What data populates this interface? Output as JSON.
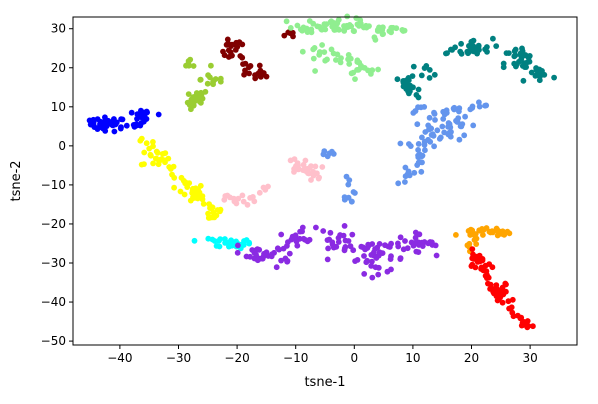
{
  "chart_data": {
    "type": "scatter",
    "xlabel": "tsne-1",
    "ylabel": "tsne-2",
    "xlim": [
      -48,
      38
    ],
    "ylim": [
      -51,
      33
    ],
    "xticks": [
      -40,
      -30,
      -20,
      -10,
      0,
      10,
      20,
      30
    ],
    "yticks": [
      -50,
      -40,
      -30,
      -20,
      -10,
      0,
      10,
      20,
      30
    ],
    "grid": false,
    "clusters": [
      {
        "color": "#0000ff",
        "segments": [
          [
            -45,
            6,
            -38,
            5
          ],
          [
            -38,
            5,
            -36,
            8
          ],
          [
            -36,
            8,
            -34,
            9
          ]
        ],
        "blobs": [
          [
            -42,
            5.5,
            2.5,
            1.5,
            30
          ],
          [
            -36.5,
            7,
            1.2,
            2,
            15
          ]
        ]
      },
      {
        "color": "#ffff00",
        "segments": [
          [
            -36,
            2,
            -32,
            -5
          ],
          [
            -32,
            -5,
            -29,
            -10
          ],
          [
            -29,
            -10,
            -26,
            -13
          ],
          [
            -26,
            -13,
            -24,
            -18
          ]
        ],
        "blobs": [
          [
            -34,
            -3,
            2,
            2,
            12
          ],
          [
            -28,
            -12,
            2,
            2,
            20
          ],
          [
            -24,
            -17,
            1.5,
            2,
            12
          ]
        ]
      },
      {
        "color": "#00ffff",
        "segments": [
          [
            -25,
            -24,
            -17,
            -25
          ]
        ],
        "blobs": [
          [
            -21,
            -25,
            3,
            1,
            22
          ]
        ]
      },
      {
        "color": "#8a2be2",
        "segments": [
          [
            -20,
            -26,
            -14,
            -28
          ],
          [
            -14,
            -28,
            -10,
            -24
          ],
          [
            -4,
            -26,
            14,
            -25
          ]
        ],
        "blobs": [
          [
            -9,
            -23,
            2,
            2,
            15
          ],
          [
            -16,
            -28,
            2,
            1.5,
            12
          ],
          [
            -3,
            -24,
            2.5,
            2.5,
            15
          ],
          [
            4,
            -29,
            4,
            3,
            30
          ],
          [
            10,
            -25,
            3,
            2,
            16
          ],
          [
            -12,
            -30,
            1.5,
            1,
            6
          ]
        ]
      },
      {
        "color": "#9acd32",
        "segments": [
          [
            -28,
            9,
            -26,
            14
          ]
        ],
        "blobs": [
          [
            -27,
            12,
            1.5,
            2.5,
            22
          ],
          [
            -24,
            17,
            1.8,
            1.8,
            12
          ],
          [
            -28,
            21,
            1,
            1.5,
            6
          ]
        ]
      },
      {
        "color": "#800000",
        "segments": [
          [
            -22,
            24,
            -15,
            18
          ]
        ],
        "blobs": [
          [
            -21,
            25,
            2,
            2,
            14
          ],
          [
            -17,
            18,
            2,
            1.5,
            10
          ],
          [
            -11,
            28.5,
            0.6,
            0.5,
            6
          ]
        ]
      },
      {
        "color": "#90ee90",
        "segments": [
          [
            -10,
            30,
            8,
            30
          ],
          [
            -4,
            24,
            4,
            19
          ]
        ],
        "blobs": [
          [
            -3,
            31,
            5,
            1.5,
            35
          ],
          [
            6,
            29,
            3,
            1.5,
            12
          ],
          [
            0,
            20,
            3,
            2,
            10
          ],
          [
            -6,
            24,
            2,
            2,
            12
          ]
        ]
      },
      {
        "color": "#008080",
        "segments": [
          [
            15,
            24,
            21,
            24
          ],
          [
            28,
            24,
            32,
            18
          ],
          [
            8,
            18,
            11,
            13
          ]
        ],
        "blobs": [
          [
            20,
            25,
            3,
            2,
            22
          ],
          [
            28,
            21,
            2,
            4,
            22
          ],
          [
            32,
            18,
            2,
            2,
            10
          ],
          [
            9,
            15,
            1,
            3,
            14
          ],
          [
            13,
            19,
            3,
            2,
            8
          ]
        ]
      },
      {
        "color": "#6495ed",
        "segments": [
          [
            13,
            8,
            23,
            11
          ],
          [
            11,
            -3,
            14,
            6
          ],
          [
            10,
            -7,
            8,
            -10
          ]
        ],
        "blobs": [
          [
            16,
            5,
            3,
            4,
            32
          ],
          [
            11,
            -2,
            2,
            4,
            14
          ],
          [
            -1,
            -11,
            1,
            4,
            10
          ],
          [
            -5,
            -2,
            2,
            1,
            7
          ],
          [
            11,
            9,
            1.5,
            1.5,
            6
          ]
        ]
      },
      {
        "color": "#ffc0cb",
        "segments": [
          [
            -10,
            -5,
            -6,
            -8
          ],
          [
            -22,
            -14,
            -17,
            -13
          ]
        ],
        "blobs": [
          [
            -9,
            -6,
            2.5,
            2.5,
            22
          ],
          [
            -20,
            -14,
            2,
            1,
            8
          ],
          [
            -15,
            -11,
            1,
            1,
            3
          ]
        ]
      },
      {
        "color": "#ffa500",
        "segments": [
          [
            18,
            -22,
            26,
            -22
          ]
        ],
        "blobs": [
          [
            23,
            -22,
            3,
            1,
            18
          ],
          [
            20,
            -25,
            1,
            1.5,
            7
          ]
        ]
      },
      {
        "color": "#ff0000",
        "segments": [
          [
            20,
            -27,
            24,
            -38
          ],
          [
            24,
            -38,
            29,
            -45
          ]
        ],
        "blobs": [
          [
            22,
            -31,
            1.5,
            2.5,
            14
          ],
          [
            25,
            -38,
            1.5,
            2.5,
            16
          ],
          [
            29.5,
            -45.5,
            1.5,
            1,
            14
          ]
        ]
      }
    ]
  }
}
